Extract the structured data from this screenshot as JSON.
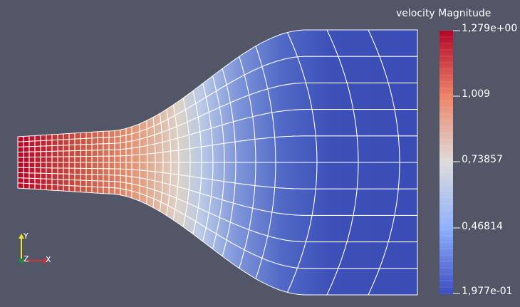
{
  "scalar_bar": {
    "title": "velocity Magnitude",
    "labels": [
      "1,279e+00",
      "1,009",
      "0,73857",
      "0,46814",
      "1,977e-01"
    ],
    "range": [
      0.1977,
      1.279
    ],
    "color_map": {
      "max": "#b40426",
      "mid": "#dddddd",
      "min": "#3b4cc0"
    }
  },
  "axes": {
    "y_label": "Y",
    "z_label": "Z",
    "x_label": "X",
    "colors": {
      "x": "#d23232",
      "y": "#e6e632",
      "z": "#1e8c3c"
    }
  },
  "background": "#525667"
}
